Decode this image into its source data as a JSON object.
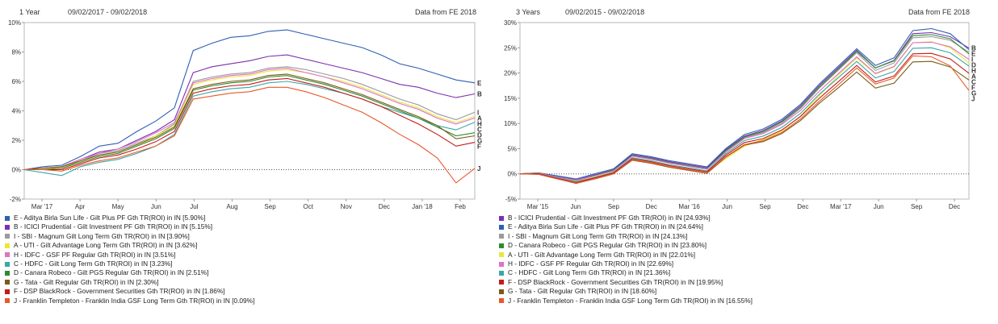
{
  "panels": [
    {
      "header": {
        "period": "1 Year",
        "dates": "09/02/2017 - 09/02/2018",
        "source": "Data from FE 2018"
      },
      "legend": [
        {
          "key": "E",
          "label": "E - Aditya Birla Sun Life - Gilt Plus PF Gth TR(ROI) in IN [5.90%]",
          "color": "#2f5fb3"
        },
        {
          "key": "B",
          "label": "B - ICICI Prudential - Gilt Investment PF Gth TR(ROI) in IN [5.15%]",
          "color": "#7b2fb0"
        },
        {
          "key": "I",
          "label": "I - SBI - Magnum Gilt Long Term Gth TR(ROI) in IN [3.90%]",
          "color": "#9a9a9a"
        },
        {
          "key": "A",
          "label": "A - UTI - Gilt Advantage Long Term Gth TR(ROI) in IN [3.62%]",
          "color": "#e8e838"
        },
        {
          "key": "H",
          "label": "H - IDFC - GSF PF Regular Gth TR(ROI) in IN [3.51%]",
          "color": "#e070c8"
        },
        {
          "key": "C",
          "label": "C - HDFC - Gilt Long Term Gth TR(ROI) in IN [3.23%]",
          "color": "#3aa7a8"
        },
        {
          "key": "D",
          "label": "D - Canara Robeco - Gilt PGS Regular Gth TR(ROI) in IN [2.51%]",
          "color": "#2e8b2e"
        },
        {
          "key": "G",
          "label": "G - Tata - Gilt Regular Gth TR(ROI) in IN [2.30%]",
          "color": "#7a5a14"
        },
        {
          "key": "F",
          "label": "F - DSP BlackRock - Government Securities Gth TR(ROI) in IN [1.86%]",
          "color": "#c81818"
        },
        {
          "key": "J",
          "label": "J - Franklin Templeton - Franklin India GSF Long Term Gth TR(ROI) in IN [0.09%]",
          "color": "#e8582a"
        }
      ]
    },
    {
      "header": {
        "period": "3 Years",
        "dates": "09/02/2015 - 09/02/2018",
        "source": "Data from FE 2018"
      },
      "legend": [
        {
          "key": "B",
          "label": "B - ICICI Prudential - Gilt Investment PF Gth TR(ROI) in IN [24.93%]",
          "color": "#7b2fb0"
        },
        {
          "key": "E",
          "label": "E - Aditya Birla Sun Life - Gilt Plus PF Gth TR(ROI) in IN [24.64%]",
          "color": "#2f5fb3"
        },
        {
          "key": "I",
          "label": "I - SBI - Magnum Gilt Long Term Gth TR(ROI) in IN [24.13%]",
          "color": "#9a9a9a"
        },
        {
          "key": "D",
          "label": "D - Canara Robeco - Gilt PGS Regular Gth TR(ROI) in IN [23.80%]",
          "color": "#2e8b2e"
        },
        {
          "key": "A",
          "label": "A - UTI - Gilt Advantage Long Term Gth TR(ROI) in IN [22.01%]",
          "color": "#e8e838"
        },
        {
          "key": "H",
          "label": "H - IDFC - GSF PF Regular Gth TR(ROI) in IN [22.69%]",
          "color": "#e070c8"
        },
        {
          "key": "C",
          "label": "C - HDFC - Gilt Long Term Gth TR(ROI) in IN [21.36%]",
          "color": "#3aa7a8"
        },
        {
          "key": "F",
          "label": "F - DSP BlackRock - Government Securities Gth TR(ROI) in IN [19.95%]",
          "color": "#c81818"
        },
        {
          "key": "G",
          "label": "G - Tata - Gilt Regular Gth TR(ROI) in IN [18.60%]",
          "color": "#7a5a14"
        },
        {
          "key": "J",
          "label": "J - Franklin Templeton - Franklin India GSF Long Term Gth TR(ROI) in IN [16.55%]",
          "color": "#e8582a"
        }
      ]
    }
  ],
  "chart_data": [
    {
      "type": "line",
      "x_ticks": [
        "Mar '17",
        "Apr",
        "May",
        "Jun",
        "Jul",
        "Aug",
        "Sep",
        "Oct",
        "Nov",
        "Dec",
        "Jan '18",
        "Feb"
      ],
      "x": [
        0,
        0.5,
        1,
        1.5,
        2,
        2.5,
        3,
        3.5,
        4,
        4.5,
        5,
        5.5,
        6,
        6.5,
        7,
        7.5,
        8,
        8.5,
        9,
        9.5,
        10,
        10.5,
        11,
        11.5,
        12
      ],
      "ylim": [
        -2,
        10
      ],
      "y_ticks": [
        "-2%",
        "0%",
        "2%",
        "4%",
        "6%",
        "8%",
        "10%"
      ],
      "y_tick_values": [
        -2,
        0,
        2,
        4,
        6,
        8,
        10
      ],
      "series": [
        {
          "key": "E",
          "values": [
            0,
            0.2,
            0.3,
            0.9,
            1.6,
            1.8,
            2.6,
            3.3,
            4.2,
            8.1,
            8.6,
            9.0,
            9.1,
            9.4,
            9.5,
            9.2,
            8.9,
            8.6,
            8.3,
            7.8,
            7.2,
            6.9,
            6.5,
            6.1,
            5.9
          ]
        },
        {
          "key": "B",
          "values": [
            0,
            0.1,
            0.2,
            0.7,
            1.2,
            1.4,
            2.0,
            2.6,
            3.4,
            6.6,
            7.0,
            7.2,
            7.4,
            7.7,
            7.8,
            7.5,
            7.2,
            6.9,
            6.6,
            6.2,
            5.8,
            5.6,
            5.2,
            4.9,
            5.15
          ]
        },
        {
          "key": "I",
          "values": [
            0,
            0.1,
            0.2,
            0.6,
            1.1,
            1.3,
            1.8,
            2.3,
            3.1,
            6.0,
            6.3,
            6.5,
            6.6,
            6.9,
            7.0,
            6.8,
            6.5,
            6.2,
            5.8,
            5.3,
            4.8,
            4.4,
            3.8,
            3.4,
            3.9
          ]
        },
        {
          "key": "A",
          "values": [
            0,
            0.1,
            0.1,
            0.6,
            1.0,
            1.2,
            1.7,
            2.3,
            3.0,
            5.8,
            6.1,
            6.3,
            6.4,
            6.7,
            6.8,
            6.6,
            6.3,
            6.0,
            5.6,
            5.1,
            4.6,
            4.2,
            3.6,
            3.2,
            3.62
          ]
        },
        {
          "key": "H",
          "values": [
            0,
            0.1,
            0.2,
            0.7,
            1.1,
            1.4,
            1.9,
            2.5,
            3.2,
            5.9,
            6.2,
            6.4,
            6.5,
            6.8,
            6.9,
            6.6,
            6.3,
            5.9,
            5.5,
            5.0,
            4.5,
            4.1,
            3.5,
            3.1,
            3.51
          ]
        },
        {
          "key": "C",
          "values": [
            0,
            -0.2,
            -0.4,
            0.2,
            0.5,
            0.7,
            1.1,
            1.6,
            2.4,
            5.0,
            5.3,
            5.5,
            5.6,
            5.9,
            6.0,
            5.8,
            5.5,
            5.2,
            4.8,
            4.3,
            3.9,
            3.5,
            3.0,
            2.7,
            3.23
          ]
        },
        {
          "key": "D",
          "values": [
            0,
            0.0,
            0.1,
            0.5,
            0.9,
            1.1,
            1.6,
            2.1,
            2.8,
            5.4,
            5.7,
            5.9,
            6.0,
            6.3,
            6.4,
            6.1,
            5.8,
            5.4,
            5.0,
            4.5,
            4.0,
            3.5,
            2.9,
            2.3,
            2.51
          ]
        },
        {
          "key": "G",
          "values": [
            0,
            0.1,
            0.2,
            0.6,
            1.0,
            1.2,
            1.7,
            2.2,
            2.9,
            5.5,
            5.8,
            6.0,
            6.1,
            6.4,
            6.5,
            6.2,
            5.9,
            5.5,
            5.1,
            4.6,
            4.1,
            3.6,
            3.0,
            2.1,
            2.3
          ]
        },
        {
          "key": "F",
          "values": [
            0,
            0.0,
            0.0,
            0.4,
            0.8,
            1.0,
            1.4,
            1.9,
            2.6,
            5.2,
            5.5,
            5.7,
            5.8,
            6.1,
            6.2,
            5.9,
            5.6,
            5.2,
            4.8,
            4.3,
            3.7,
            3.1,
            2.4,
            1.6,
            1.86
          ]
        },
        {
          "key": "J",
          "values": [
            0,
            0.0,
            -0.1,
            0.3,
            0.6,
            0.8,
            1.2,
            1.6,
            2.3,
            4.8,
            5.0,
            5.2,
            5.3,
            5.6,
            5.6,
            5.3,
            4.9,
            4.4,
            3.9,
            3.2,
            2.4,
            1.7,
            0.8,
            -0.9,
            0.09
          ]
        }
      ]
    },
    {
      "type": "line",
      "x_ticks": [
        "Mar '15",
        "Jun",
        "Sep",
        "Dec",
        "Mar '16",
        "Jun",
        "Sep",
        "Dec",
        "Mar '17",
        "Jun",
        "Sep",
        "Dec"
      ],
      "x": [
        0,
        0.5,
        1,
        1.5,
        2,
        2.5,
        3,
        3.5,
        4,
        4.5,
        5,
        5.5,
        6,
        6.5,
        7,
        7.5,
        8,
        8.5,
        9,
        9.5,
        10,
        10.5,
        11,
        11.5,
        12
      ],
      "ylim": [
        -5,
        30
      ],
      "y_ticks": [
        "-5%",
        "0%",
        "5%",
        "10%",
        "15%",
        "20%",
        "25%",
        "30%"
      ],
      "y_tick_values": [
        -5,
        0,
        5,
        10,
        15,
        20,
        25,
        30
      ],
      "series": [
        {
          "key": "B",
          "values": [
            0,
            0.2,
            -0.5,
            -1.2,
            -0.2,
            0.8,
            3.8,
            3.2,
            2.4,
            1.8,
            1.2,
            4.8,
            7.5,
            8.6,
            10.5,
            13.5,
            17.5,
            21.0,
            24.5,
            21.0,
            22.5,
            27.8,
            28.0,
            27.2,
            24.93
          ]
        },
        {
          "key": "E",
          "values": [
            0,
            0.2,
            -0.4,
            -1.0,
            0.0,
            1.0,
            4.0,
            3.4,
            2.6,
            2.0,
            1.4,
            5.0,
            7.8,
            8.9,
            10.8,
            13.8,
            17.8,
            21.3,
            24.8,
            21.5,
            23.0,
            28.4,
            28.8,
            27.8,
            24.64
          ]
        },
        {
          "key": "I",
          "values": [
            0,
            0.1,
            -0.6,
            -1.3,
            -0.4,
            0.6,
            3.6,
            3.0,
            2.2,
            1.6,
            1.0,
            4.5,
            7.2,
            8.2,
            10.0,
            13.0,
            17.0,
            20.5,
            24.0,
            20.5,
            22.0,
            27.0,
            27.2,
            26.5,
            24.13
          ]
        },
        {
          "key": "D",
          "values": [
            0,
            0.2,
            -0.6,
            -1.4,
            -0.3,
            0.7,
            3.6,
            3.0,
            2.2,
            1.6,
            1.0,
            4.6,
            7.3,
            8.4,
            10.3,
            13.2,
            17.2,
            20.7,
            24.3,
            21.0,
            22.4,
            27.4,
            27.6,
            26.8,
            23.8
          ]
        },
        {
          "key": "A",
          "values": [
            0,
            0.0,
            -0.8,
            -1.5,
            -0.6,
            0.4,
            3.2,
            2.6,
            1.8,
            1.2,
            0.4,
            3.0,
            5.5,
            6.8,
            8.5,
            11.5,
            15.5,
            19.5,
            23.0,
            19.8,
            21.2,
            26.0,
            26.2,
            25.0,
            22.01
          ]
        },
        {
          "key": "H",
          "values": [
            0,
            0.1,
            -0.6,
            -1.3,
            -0.4,
            0.6,
            3.5,
            2.9,
            2.1,
            1.5,
            0.9,
            4.3,
            7.0,
            8.0,
            9.8,
            12.6,
            16.4,
            19.8,
            23.2,
            19.9,
            21.3,
            26.0,
            26.1,
            25.2,
            22.69
          ]
        },
        {
          "key": "C",
          "values": [
            0,
            0.0,
            -0.8,
            -1.6,
            -0.7,
            0.3,
            3.2,
            2.6,
            1.8,
            1.2,
            0.6,
            4.0,
            6.6,
            7.5,
            9.2,
            12.0,
            15.8,
            19.0,
            22.3,
            19.0,
            20.3,
            24.9,
            25.0,
            24.0,
            21.36
          ]
        },
        {
          "key": "F",
          "values": [
            0,
            0.0,
            -0.9,
            -1.7,
            -0.8,
            0.2,
            3.0,
            2.4,
            1.6,
            1.0,
            0.4,
            3.7,
            6.2,
            7.0,
            8.7,
            11.4,
            15.0,
            18.2,
            21.5,
            18.2,
            19.4,
            23.8,
            23.9,
            22.8,
            19.95
          ]
        },
        {
          "key": "G",
          "values": [
            0,
            -0.1,
            -1.0,
            -1.9,
            -1.0,
            0.0,
            2.7,
            2.1,
            1.3,
            0.7,
            0.1,
            3.3,
            5.7,
            6.4,
            8.0,
            10.6,
            14.0,
            17.0,
            20.2,
            17.0,
            18.0,
            22.2,
            22.3,
            21.2,
            18.6
          ]
        },
        {
          "key": "J",
          "values": [
            0,
            -0.1,
            -1.0,
            -1.8,
            -1.0,
            0.0,
            2.8,
            2.2,
            1.4,
            0.8,
            0.2,
            3.4,
            5.8,
            6.6,
            8.2,
            10.9,
            14.4,
            17.6,
            21.0,
            17.8,
            19.0,
            23.4,
            23.2,
            21.4,
            16.55
          ]
        }
      ],
      "label_order": [
        "B",
        "E",
        "I",
        "D",
        "A",
        "H",
        "C",
        "F",
        "G",
        "J"
      ]
    }
  ]
}
